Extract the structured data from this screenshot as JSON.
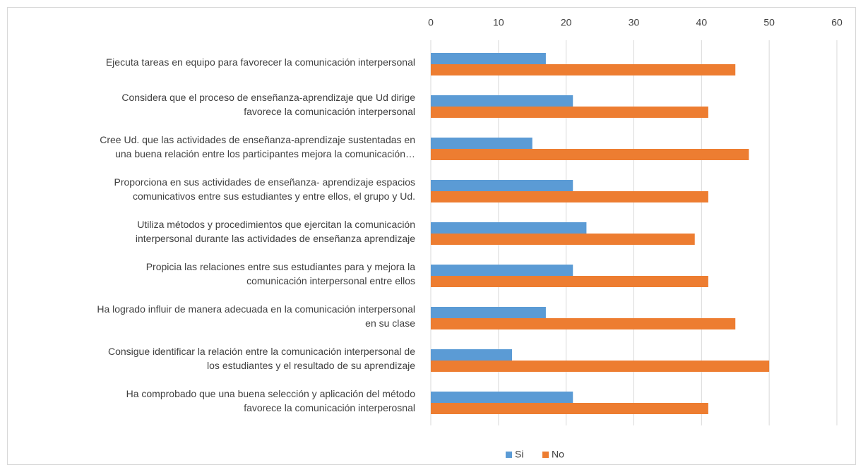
{
  "chart_data": {
    "type": "bar",
    "orientation": "horizontal",
    "categories": [
      "Ejecuta tareas en equipo para favorecer la comunicación  interpersonal",
      "Considera que el proceso de enseñanza-aprendizaje que Ud dirige\nfavorece la comunicación interpersonal",
      "Cree Ud. que las actividades de enseñanza-aprendizaje sustentadas en\nuna buena relación entre los participantes mejora la comunicación…",
      "Proporciona en sus actividades de enseñanza- aprendizaje  espacios\ncomunicativos entre sus estudiantes y entre ellos, el grupo  y Ud.",
      "Utiliza métodos y procedimientos que ejercitan la comunicación\ninterpersonal durante las actividades de enseñanza aprendizaje",
      "Propicia  las relaciones entre sus estudiantes para y mejora  la\ncomunicación interpersonal entre ellos",
      "Ha logrado influir de manera adecuada en la comunicación interpersonal\nen su clase",
      "Consigue identificar la relación entre la comunicación interpersonal de\nlos estudiantes y el resultado de su aprendizaje",
      "Ha comprobado que una buena selección y aplicación del método\nfavorece la comunicación interperosnal"
    ],
    "series": [
      {
        "name": "Si",
        "color": "#5b9bd5",
        "values": [
          17,
          21,
          15,
          21,
          23,
          21,
          17,
          12,
          21
        ]
      },
      {
        "name": "No",
        "color": "#ed7d31",
        "values": [
          45,
          41,
          47,
          41,
          39,
          41,
          45,
          50,
          41
        ]
      }
    ],
    "xlim": [
      0,
      60
    ],
    "xticks": [
      0,
      10,
      20,
      30,
      40,
      50,
      60
    ],
    "grid": true,
    "legend": "bottom"
  }
}
